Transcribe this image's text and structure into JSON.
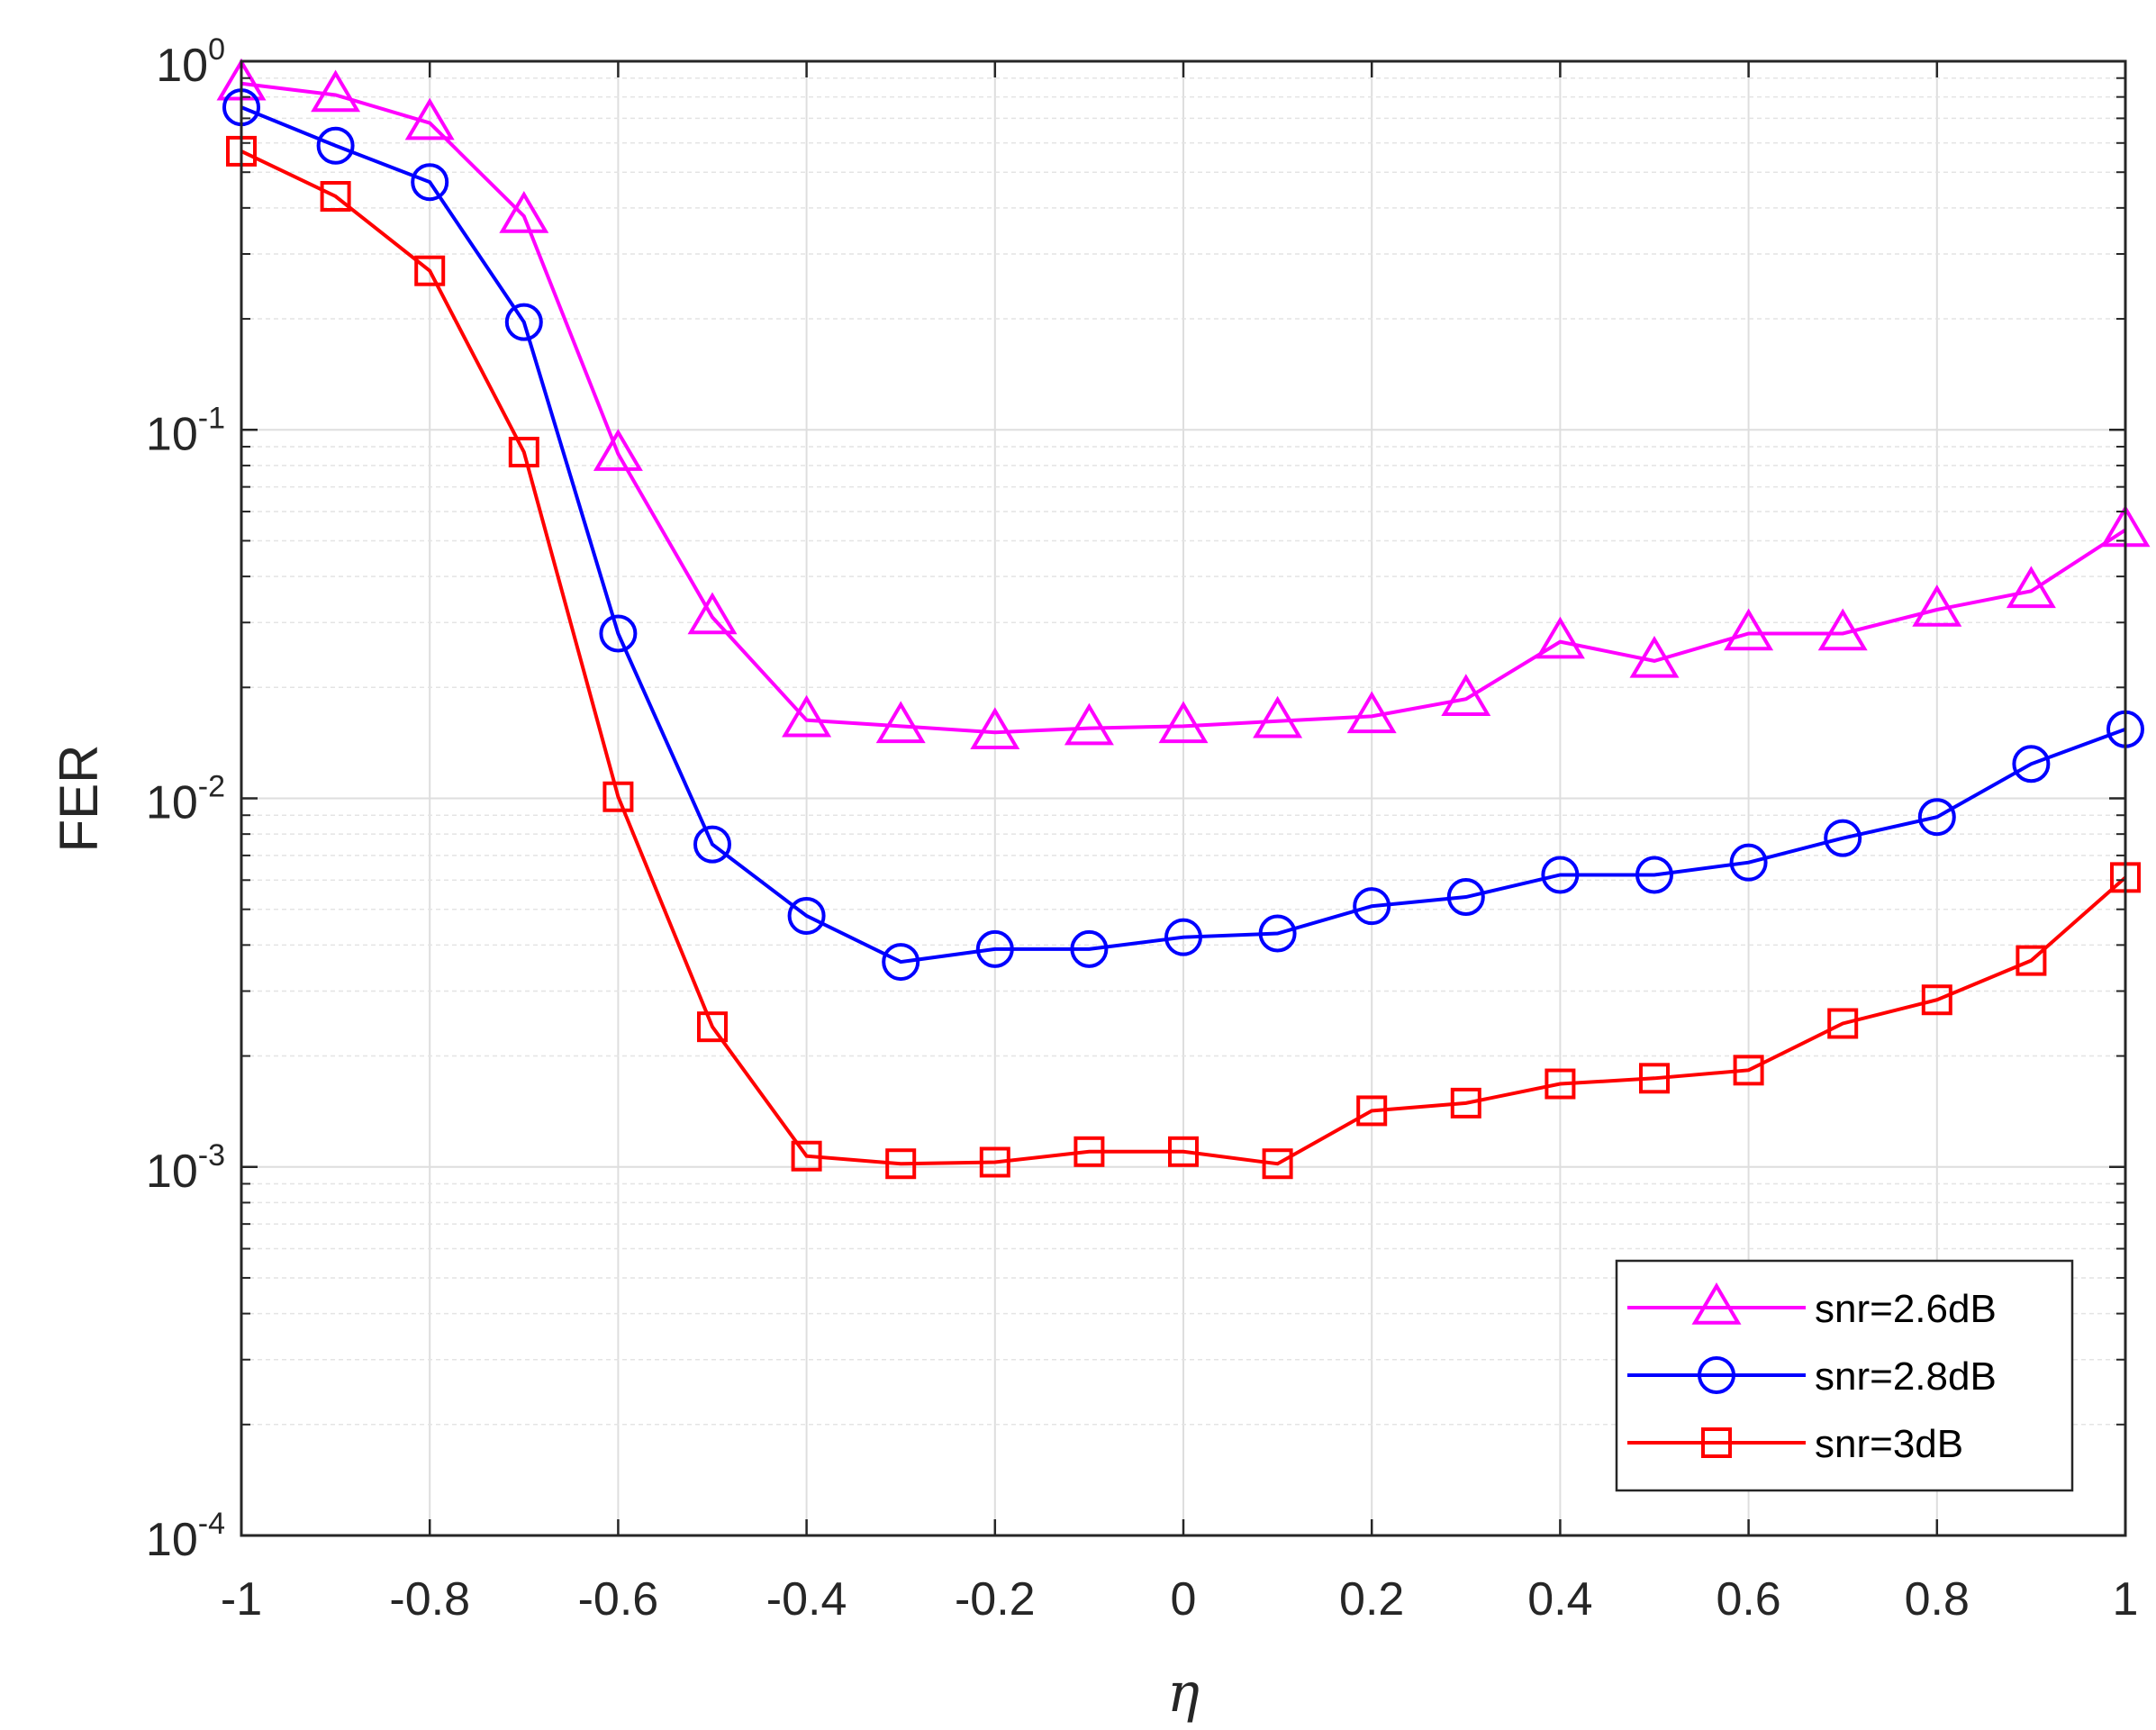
{
  "chart_data": {
    "type": "line",
    "xlabel": "η",
    "ylabel": "FER",
    "xlim": [
      -1,
      1
    ],
    "ylim": [
      0.0001,
      1
    ],
    "yscale": "log",
    "grid": true,
    "legend_position": "bottom-right",
    "x_ticks": [
      "-1",
      "-0.8",
      "-0.6",
      "-0.4",
      "-0.2",
      "0",
      "0.2",
      "0.4",
      "0.6",
      "0.8",
      "1"
    ],
    "y_ticks": [
      {
        "base": "10",
        "exp": "0"
      },
      {
        "base": "10",
        "exp": "-1"
      },
      {
        "base": "10",
        "exp": "-2"
      },
      {
        "base": "10",
        "exp": "-3"
      },
      {
        "base": "10",
        "exp": "-4"
      }
    ],
    "x": [
      -1,
      -0.9,
      -0.8,
      -0.7,
      -0.6,
      -0.5,
      -0.4,
      -0.3,
      -0.2,
      -0.1,
      0,
      0.1,
      0.2,
      0.3,
      0.4,
      0.5,
      0.6,
      0.7,
      0.8,
      0.9,
      1
    ],
    "series": [
      {
        "name": "snr=2.6dB",
        "color": "#ff00ff",
        "marker": "triangle",
        "values": [
          0.87,
          0.81,
          0.68,
          0.38,
          0.086,
          0.031,
          0.0163,
          0.0157,
          0.0151,
          0.0155,
          0.0157,
          0.0162,
          0.0167,
          0.0186,
          0.0266,
          0.0236,
          0.028,
          0.028,
          0.0325,
          0.0365,
          0.0535
        ]
      },
      {
        "name": "snr=2.8dB",
        "color": "#0000ff",
        "marker": "circle",
        "values": [
          0.75,
          0.59,
          0.47,
          0.196,
          0.028,
          0.0075,
          0.0048,
          0.0036,
          0.0039,
          0.0039,
          0.0042,
          0.0043,
          0.0051,
          0.0054,
          0.0062,
          0.0062,
          0.0067,
          0.0078,
          0.0089,
          0.0124,
          0.0154
        ]
      },
      {
        "name": "snr=3dB",
        "color": "#ff0000",
        "marker": "square",
        "values": [
          0.57,
          0.43,
          0.27,
          0.087,
          0.0101,
          0.0024,
          0.00107,
          0.00102,
          0.00103,
          0.0011,
          0.0011,
          0.00102,
          0.00142,
          0.00149,
          0.00168,
          0.00174,
          0.00183,
          0.00245,
          0.00284,
          0.00363,
          0.0061
        ]
      }
    ]
  }
}
